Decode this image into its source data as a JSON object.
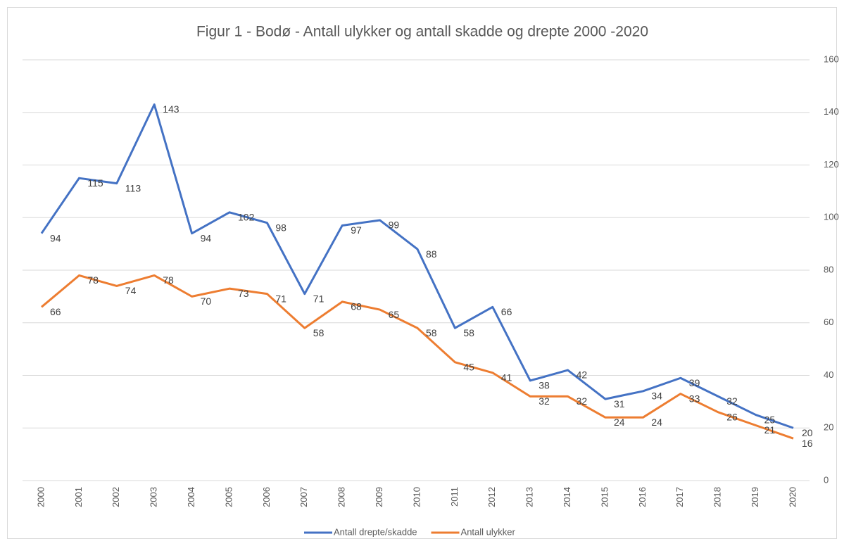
{
  "chart_data": {
    "type": "line",
    "title": "Figur 1 - Bodø - Antall ulykker og antall skadde og drepte 2000 -2020",
    "categories": [
      "2000",
      "2001",
      "2002",
      "2003",
      "2004",
      "2005",
      "2006",
      "2007",
      "2008",
      "2009",
      "2010",
      "2011",
      "2012",
      "2013",
      "2014",
      "2015",
      "2016",
      "2017",
      "2018",
      "2019",
      "2020"
    ],
    "series": [
      {
        "name": "Antall drepte/skadde",
        "color": "#4472c4",
        "values": [
          94,
          115,
          113,
          143,
          94,
          102,
          98,
          71,
          97,
          99,
          88,
          58,
          66,
          38,
          42,
          31,
          34,
          39,
          32,
          25,
          20
        ]
      },
      {
        "name": "Antall ulykker",
        "color": "#ed7d31",
        "values": [
          66,
          78,
          74,
          78,
          70,
          73,
          71,
          58,
          68,
          65,
          58,
          45,
          41,
          32,
          32,
          24,
          24,
          33,
          26,
          21,
          16
        ]
      }
    ],
    "ylim": [
      0,
      160
    ],
    "yticks": [
      0,
      20,
      40,
      60,
      80,
      100,
      120,
      140,
      160
    ],
    "y_axis_side": "right",
    "grid": true,
    "legend": "bottom"
  }
}
